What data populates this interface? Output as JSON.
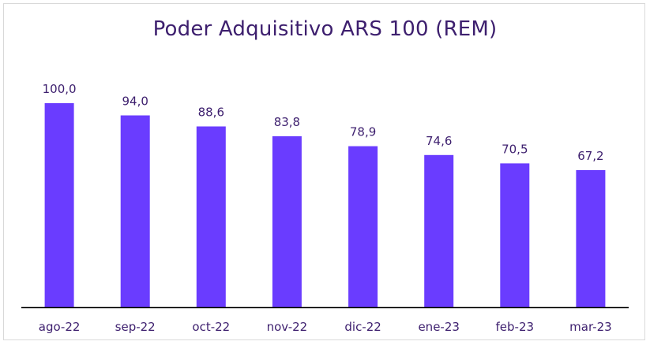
{
  "chart_data": {
    "type": "bar",
    "title": "Poder Adquisitivo ARS 100 (REM)",
    "categories": [
      "ago-22",
      "sep-22",
      "oct-22",
      "nov-22",
      "dic-22",
      "ene-23",
      "feb-23",
      "mar-23"
    ],
    "values": [
      100.0,
      94.0,
      88.6,
      83.8,
      78.9,
      74.6,
      70.5,
      67.2
    ],
    "value_labels": [
      "100,0",
      "94,0",
      "88,6",
      "83,8",
      "78,9",
      "74,6",
      "70,5",
      "67,2"
    ],
    "xlabel": "",
    "ylabel": "",
    "ylim": [
      0,
      100
    ],
    "grid": false,
    "legend": "none",
    "colors": {
      "bar": "#6a3cff",
      "text": "#3d1f6e",
      "axis": "#000000"
    }
  }
}
